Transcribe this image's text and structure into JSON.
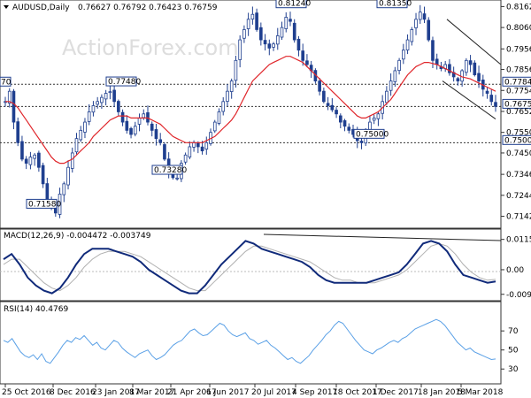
{
  "header": {
    "symbol": "AUDUSD,Daily",
    "ohlc": "0.76627 0.76792 0.76423 0.76759"
  },
  "watermark": "ActionForex.com",
  "colors": {
    "bg": "#ffffff",
    "candle": "#1f3f8f",
    "ma": "#e0262b",
    "macd": "#102a7a",
    "macd_signal": "#b0b0b0",
    "rsi": "#5aa0e6",
    "trend": "#222222",
    "level": "#333333",
    "box_border": "#1f3f8f",
    "grid": "#cccccc",
    "watermark": "#dddddd"
  },
  "chart_data": [
    {
      "type": "candlestick",
      "title": "AUDUSD,Daily",
      "yticks": [
        "0.81620",
        "0.80600",
        "0.79560",
        "0.78560",
        "0.77540",
        "0.76520",
        "0.75500",
        "0.74500",
        "0.73460",
        "0.72440",
        "0.71420"
      ],
      "ylim": [
        0.711,
        0.8168
      ],
      "xticks": [
        "25 Oct 2016",
        "8 Dec 2016",
        "23 Jan 2017",
        "8 Mar 2017",
        "21 Apr 2017",
        "6 Jun 2017",
        "20 Jul 2017",
        "4 Sep 2017",
        "18 Oct 2017",
        "1 Dec 2017",
        "18 Jan 2018",
        "5 Mar 2018"
      ],
      "series_close": [
        0.77,
        0.775,
        0.76,
        0.75,
        0.742,
        0.74,
        0.743,
        0.744,
        0.738,
        0.73,
        0.72,
        0.72,
        0.7158,
        0.725,
        0.73,
        0.738,
        0.745,
        0.752,
        0.756,
        0.76,
        0.765,
        0.768,
        0.77,
        0.772,
        0.774,
        0.7748,
        0.77,
        0.765,
        0.76,
        0.756,
        0.754,
        0.758,
        0.762,
        0.764,
        0.76,
        0.756,
        0.752,
        0.75,
        0.742,
        0.736,
        0.733,
        0.7328,
        0.74,
        0.744,
        0.748,
        0.75,
        0.748,
        0.746,
        0.75,
        0.755,
        0.76,
        0.765,
        0.77,
        0.775,
        0.78,
        0.79,
        0.8,
        0.805,
        0.81,
        0.8124,
        0.805,
        0.8,
        0.798,
        0.796,
        0.798,
        0.802,
        0.806,
        0.811,
        0.809,
        0.8,
        0.795,
        0.79,
        0.788,
        0.785,
        0.78,
        0.775,
        0.77,
        0.768,
        0.766,
        0.764,
        0.76,
        0.758,
        0.756,
        0.754,
        0.751,
        0.75,
        0.756,
        0.76,
        0.762,
        0.764,
        0.77,
        0.775,
        0.78,
        0.785,
        0.79,
        0.795,
        0.8,
        0.805,
        0.81,
        0.8135,
        0.81,
        0.8,
        0.79,
        0.788,
        0.786,
        0.788,
        0.784,
        0.782,
        0.78,
        0.785,
        0.79,
        0.788,
        0.783,
        0.78,
        0.776,
        0.774,
        0.77,
        0.7676
      ],
      "ma_values": [
        0.77,
        0.77,
        0.769,
        0.767,
        0.764,
        0.761,
        0.758,
        0.755,
        0.752,
        0.749,
        0.746,
        0.743,
        0.741,
        0.74,
        0.74,
        0.741,
        0.742,
        0.744,
        0.746,
        0.748,
        0.75,
        0.753,
        0.755,
        0.757,
        0.759,
        0.761,
        0.762,
        0.763,
        0.763,
        0.763,
        0.762,
        0.762,
        0.762,
        0.762,
        0.762,
        0.761,
        0.76,
        0.759,
        0.757,
        0.755,
        0.753,
        0.752,
        0.751,
        0.75,
        0.75,
        0.75,
        0.75,
        0.75,
        0.751,
        0.752,
        0.753,
        0.755,
        0.757,
        0.759,
        0.761,
        0.764,
        0.768,
        0.772,
        0.776,
        0.78,
        0.782,
        0.784,
        0.786,
        0.788,
        0.789,
        0.79,
        0.791,
        0.792,
        0.792,
        0.791,
        0.79,
        0.789,
        0.787,
        0.785,
        0.783,
        0.781,
        0.779,
        0.777,
        0.775,
        0.773,
        0.771,
        0.769,
        0.767,
        0.765,
        0.763,
        0.762,
        0.762,
        0.763,
        0.764,
        0.765,
        0.767,
        0.769,
        0.771,
        0.774,
        0.777,
        0.78,
        0.783,
        0.785,
        0.787,
        0.788,
        0.789,
        0.789,
        0.7885,
        0.788,
        0.787,
        0.786,
        0.785,
        0.784,
        0.783,
        0.782,
        0.7815,
        0.781,
        0.78,
        0.779,
        0.778,
        0.777,
        0.776,
        0.775
      ],
      "price_labels": [
        "0.81240",
        "0.81350",
        "0.77480",
        "0.73280",
        "0.71580",
        "0.75000",
        "0.77840",
        "0.76759",
        "0.75000"
      ],
      "left_edge_label": "70"
    },
    {
      "type": "line",
      "title": "MACD(12,26,9) -0.004472 -0.003749",
      "yticks": [
        "0.01159",
        "0.00",
        "-0.009406"
      ],
      "ylim": [
        -0.0105,
        0.0125
      ],
      "series": [
        {
          "values": [
            0.004,
            0.006,
            0.002,
            -0.003,
            -0.006,
            -0.008,
            -0.009,
            -0.007,
            -0.003,
            0.002,
            0.006,
            0.008,
            0.008,
            0.008,
            0.007,
            0.006,
            0.005,
            0.003,
            0.0,
            -0.002,
            -0.004,
            -0.006,
            -0.008,
            -0.009,
            -0.009,
            -0.006,
            -0.002,
            0.002,
            0.005,
            0.008,
            0.011,
            0.01,
            0.008,
            0.007,
            0.006,
            0.005,
            0.004,
            0.003,
            0.001,
            -0.002,
            -0.004,
            -0.005,
            -0.005,
            -0.005,
            -0.005,
            -0.005,
            -0.004,
            -0.003,
            -0.002,
            -0.001,
            0.002,
            0.006,
            0.01,
            0.011,
            0.01,
            0.007,
            0.002,
            -0.002,
            -0.003,
            -0.004,
            -0.005,
            -0.0045
          ]
        },
        {
          "values": [
            0.002,
            0.004,
            0.004,
            0.001,
            -0.002,
            -0.005,
            -0.007,
            -0.008,
            -0.006,
            -0.003,
            0.001,
            0.004,
            0.006,
            0.007,
            0.007,
            0.007,
            0.006,
            0.005,
            0.003,
            0.001,
            -0.001,
            -0.003,
            -0.005,
            -0.007,
            -0.008,
            -0.008,
            -0.005,
            -0.002,
            0.001,
            0.004,
            0.007,
            0.009,
            0.009,
            0.008,
            0.007,
            0.006,
            0.005,
            0.004,
            0.003,
            0.001,
            -0.001,
            -0.003,
            -0.004,
            -0.004,
            -0.005,
            -0.005,
            -0.005,
            -0.004,
            -0.003,
            -0.002,
            0.0,
            0.003,
            0.006,
            0.009,
            0.01,
            0.009,
            0.006,
            0.002,
            -0.001,
            -0.003,
            -0.004,
            -0.0037
          ]
        }
      ]
    },
    {
      "type": "line",
      "title": "RSI(14) 40.4769",
      "yticks": [
        "70",
        "50",
        "30"
      ],
      "ylim": [
        20,
        85
      ],
      "series": [
        {
          "values": [
            60,
            58,
            62,
            55,
            48,
            44,
            42,
            45,
            40,
            46,
            38,
            36,
            42,
            48,
            55,
            60,
            58,
            63,
            61,
            65,
            60,
            55,
            58,
            52,
            50,
            55,
            60,
            58,
            52,
            48,
            45,
            42,
            46,
            48,
            50,
            44,
            40,
            42,
            45,
            50,
            55,
            58,
            60,
            65,
            70,
            72,
            68,
            65,
            66,
            70,
            74,
            78,
            76,
            70,
            66,
            64,
            66,
            68,
            62,
            60,
            56,
            58,
            60,
            55,
            52,
            48,
            44,
            40,
            42,
            38,
            36,
            40,
            44,
            50,
            55,
            60,
            66,
            70,
            76,
            80,
            78,
            72,
            66,
            60,
            55,
            50,
            48,
            46,
            50,
            52,
            55,
            58,
            60,
            58,
            62,
            64,
            68,
            72,
            74,
            76,
            78,
            80,
            82,
            80,
            76,
            70,
            64,
            58,
            54,
            50,
            52,
            48,
            46,
            44,
            42,
            40,
            40.5
          ]
        }
      ]
    }
  ]
}
